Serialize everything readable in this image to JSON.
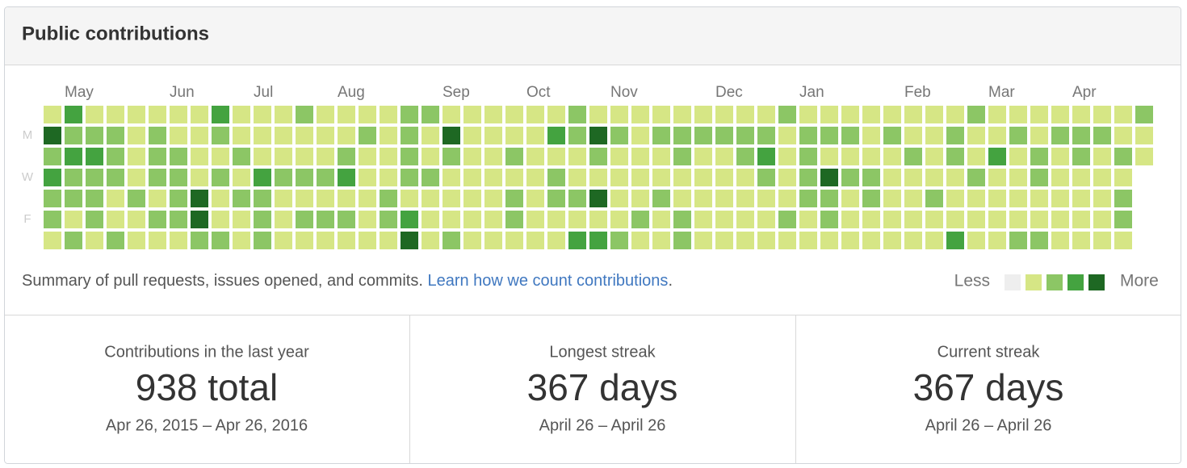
{
  "header": {
    "title": "Public contributions"
  },
  "calendar": {
    "months": [
      "May",
      "Jun",
      "Jul",
      "Aug",
      "Sep",
      "Oct",
      "Nov",
      "Dec",
      "Jan",
      "Feb",
      "Mar",
      "Apr"
    ],
    "days": [
      "M",
      "W",
      "F"
    ],
    "colors": [
      "#eeeeee",
      "#d6e685",
      "#8cc665",
      "#44a340",
      "#1e6823"
    ],
    "rows": [
      [
        1,
        3,
        1,
        1,
        1,
        1,
        1,
        1,
        3,
        1,
        1,
        1,
        2,
        1,
        1,
        1,
        1,
        2,
        2,
        1,
        1,
        1,
        1,
        1,
        1,
        2,
        1,
        1,
        1,
        1,
        1,
        1,
        1,
        1,
        1,
        2,
        1,
        1,
        1,
        1,
        1,
        1,
        1,
        1,
        2,
        1,
        1,
        1,
        1,
        1,
        1,
        1,
        2
      ],
      [
        4,
        2,
        2,
        2,
        1,
        2,
        1,
        1,
        2,
        1,
        1,
        1,
        1,
        1,
        1,
        2,
        1,
        2,
        1,
        4,
        1,
        1,
        1,
        1,
        3,
        2,
        4,
        2,
        1,
        2,
        2,
        2,
        2,
        2,
        2,
        1,
        2,
        2,
        2,
        1,
        2,
        1,
        1,
        2,
        1,
        1,
        2,
        1,
        2,
        2,
        2,
        1,
        1
      ],
      [
        2,
        3,
        3,
        2,
        1,
        2,
        2,
        1,
        1,
        2,
        1,
        1,
        1,
        1,
        2,
        1,
        1,
        2,
        1,
        2,
        1,
        1,
        2,
        1,
        1,
        1,
        2,
        1,
        1,
        1,
        2,
        1,
        1,
        2,
        3,
        1,
        2,
        1,
        1,
        1,
        1,
        2,
        1,
        2,
        1,
        3,
        1,
        2,
        1,
        2,
        1,
        2,
        1
      ],
      [
        3,
        2,
        2,
        2,
        1,
        2,
        2,
        1,
        2,
        1,
        3,
        2,
        2,
        2,
        3,
        1,
        1,
        2,
        2,
        1,
        1,
        1,
        1,
        1,
        2,
        1,
        1,
        1,
        1,
        1,
        1,
        1,
        1,
        1,
        2,
        1,
        2,
        4,
        2,
        2,
        1,
        1,
        1,
        1,
        2,
        1,
        1,
        2,
        1,
        1,
        1,
        1
      ],
      [
        2,
        2,
        2,
        1,
        2,
        1,
        2,
        4,
        1,
        2,
        2,
        1,
        1,
        1,
        1,
        1,
        2,
        1,
        1,
        1,
        1,
        1,
        2,
        1,
        2,
        2,
        4,
        1,
        1,
        2,
        1,
        1,
        1,
        1,
        1,
        1,
        2,
        2,
        1,
        2,
        1,
        1,
        2,
        1,
        1,
        1,
        1,
        1,
        1,
        1,
        1,
        2
      ],
      [
        2,
        1,
        2,
        1,
        1,
        2,
        2,
        4,
        1,
        1,
        2,
        1,
        2,
        2,
        2,
        1,
        2,
        3,
        1,
        1,
        1,
        1,
        2,
        1,
        1,
        1,
        1,
        1,
        2,
        1,
        2,
        1,
        1,
        1,
        1,
        2,
        1,
        2,
        1,
        1,
        1,
        1,
        1,
        1,
        1,
        1,
        1,
        1,
        1,
        1,
        1,
        2
      ],
      [
        1,
        2,
        1,
        2,
        1,
        1,
        1,
        2,
        2,
        1,
        2,
        1,
        1,
        1,
        1,
        1,
        1,
        4,
        1,
        2,
        1,
        1,
        1,
        1,
        1,
        3,
        3,
        2,
        1,
        1,
        2,
        1,
        1,
        1,
        1,
        1,
        1,
        1,
        1,
        1,
        1,
        1,
        1,
        3,
        1,
        1,
        2,
        2,
        1,
        1,
        1,
        1
      ]
    ]
  },
  "summary": {
    "text": "Summary of pull requests, issues opened, and commits.",
    "link": "Learn how we count contributions",
    "end": "."
  },
  "legend": {
    "less": "Less",
    "more": "More"
  },
  "stats": [
    {
      "label": "Contributions in the last year",
      "value": "938 total",
      "range": "Apr 26, 2015 – Apr 26, 2016"
    },
    {
      "label": "Longest streak",
      "value": "367 days",
      "range": "April 26 – April 26"
    },
    {
      "label": "Current streak",
      "value": "367 days",
      "range": "April 26 – April 26"
    }
  ]
}
